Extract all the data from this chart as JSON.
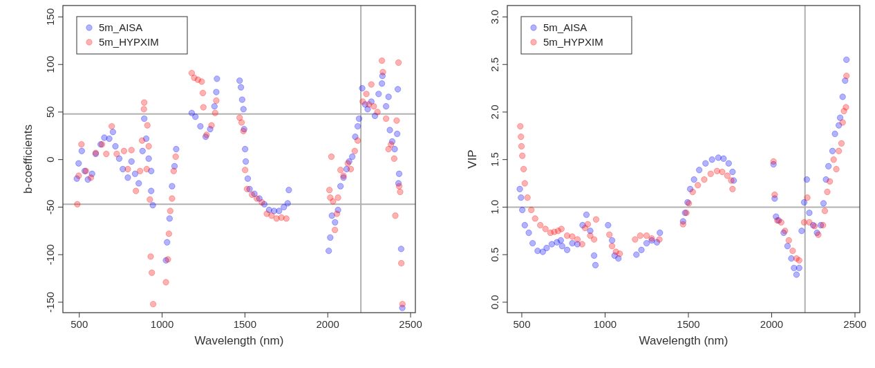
{
  "chart_data": [
    {
      "type": "scatter",
      "xlabel": "Wavelength  (nm)",
      "ylabel": "b-coefficients",
      "xlim": [
        401,
        2529
      ],
      "ylim": [
        -161,
        162
      ],
      "xticks": [
        500,
        1000,
        1500,
        2000,
        2500
      ],
      "yticks": [
        -150,
        -100,
        -50,
        0,
        50,
        100,
        150
      ],
      "marker": "circle",
      "legend": "top left",
      "grid": false,
      "ref_lines": [
        {
          "axis": "y",
          "value": 48,
          "color": "#b0b0b0"
        },
        {
          "axis": "y",
          "value": -47,
          "color": "#b0b0b0"
        },
        {
          "axis": "x",
          "value": 2200,
          "color": "#b0b0b0"
        }
      ],
      "series": [
        {
          "name": "5m_AISA",
          "color": "#0000ff",
          "x": [
            485,
            496,
            515,
            533,
            552,
            577,
            599,
            629,
            651,
            681,
            703,
            718,
            741,
            763,
            793,
            815,
            837,
            859,
            882,
            892,
            904,
            919,
            934,
            934,
            944,
            1030,
            1023,
            1045,
            1060,
            1075,
            1085,
            1179,
            1201,
            1231,
            1263,
            1290,
            1316,
            1327,
            1331,
            1468,
            1476,
            1483,
            1491,
            1495,
            1501,
            1505,
            1517,
            1528,
            1557,
            1587,
            1617,
            1646,
            1676,
            1706,
            1735,
            1758,
            1765,
            2006,
            2015,
            2025,
            2044,
            2062,
            2077,
            2095,
            2114,
            2129,
            2148,
            2166,
            2181,
            2189,
            2208,
            2226,
            2241,
            2263,
            2285,
            2307,
            2327,
            2330,
            2352,
            2367,
            2375,
            2389,
            2404,
            2419,
            2423,
            2431,
            2427,
            2443,
            2450
          ],
          "values": [
            -20,
            -4,
            9,
            -12,
            -21,
            -15,
            6,
            16,
            23,
            22,
            29,
            14,
            1,
            -10,
            -19,
            -2,
            -15,
            -25,
            9,
            43,
            22,
            1,
            -12,
            -33,
            -48,
            -87,
            -106,
            -62,
            -28,
            -7,
            11,
            49,
            45,
            35,
            24,
            32,
            56,
            71,
            85,
            83,
            76,
            63,
            53,
            32,
            11,
            -2,
            -20,
            -31,
            -36,
            -41,
            -47,
            -53,
            -54,
            -54,
            -50,
            -46,
            -32,
            -96,
            -82,
            -59,
            -66,
            -53,
            -28,
            -19,
            -10,
            -2,
            3,
            24,
            35,
            43,
            75,
            58,
            53,
            61,
            46,
            69,
            80,
            88,
            56,
            66,
            31,
            19,
            11,
            27,
            74,
            -15,
            -25,
            -94,
            -156
          ]
        },
        {
          "name": "5m_HYPXIM",
          "color": "#ff0000",
          "x": [
            488,
            496,
            513,
            540,
            570,
            599,
            637,
            663,
            696,
            726,
            770,
            793,
            815,
            842,
            867,
            879,
            890,
            892,
            911,
            919,
            907,
            926,
            931,
            938,
            946,
            1023,
            1035,
            1041,
            1049,
            1060,
            1070,
            1082,
            1179,
            1194,
            1216,
            1239,
            1246,
            1249,
            1268,
            1298,
            1320,
            1327,
            1468,
            1480,
            1491,
            1501,
            1513,
            1543,
            1572,
            1602,
            1632,
            1661,
            1691,
            1720,
            1750,
            2010,
            2015,
            2022,
            2032,
            2043,
            2055,
            2062,
            2077,
            2095,
            2121,
            2139,
            2163,
            2181,
            2211,
            2233,
            2248,
            2263,
            2278,
            2300,
            2327,
            2333,
            2352,
            2367,
            2382,
            2401,
            2408,
            2416,
            2427,
            2431,
            2437,
            2444,
            2451
          ],
          "values": [
            -47,
            -17,
            16,
            -12,
            -19,
            7,
            16,
            6,
            35,
            6,
            9,
            -10,
            10,
            -33,
            -12,
            20,
            53,
            60,
            36,
            14,
            -10,
            -42,
            -102,
            -119,
            -152,
            -129,
            -105,
            -78,
            -54,
            -41,
            -12,
            3,
            91,
            86,
            84,
            82,
            70,
            55,
            26,
            36,
            49,
            62,
            44,
            39,
            30,
            -11,
            -31,
            -37,
            -41,
            -45,
            -57,
            -59,
            -62,
            -61,
            -62,
            -32,
            -40,
            3,
            -44,
            -74,
            -57,
            -40,
            -11,
            -17,
            -4,
            -10,
            9,
            20,
            61,
            69,
            58,
            79,
            56,
            50,
            104,
            92,
            43,
            11,
            16,
            1,
            -59,
            41,
            102,
            -28,
            -34,
            -109,
            -152
          ]
        }
      ]
    },
    {
      "type": "scatter",
      "xlabel": "Wavelength  (nm)",
      "ylabel": "VIP",
      "xlim": [
        413,
        2529
      ],
      "ylim": [
        -0.11,
        3.12
      ],
      "xticks": [
        500,
        1000,
        1500,
        2000,
        2500
      ],
      "yticks": [
        {
          "value": 0,
          "label": "0.0"
        },
        {
          "value": 0.5,
          "label": "0.5"
        },
        {
          "value": 1,
          "label": "1.0"
        },
        {
          "value": 1.5,
          "label": "1.5"
        },
        {
          "value": 2,
          "label": "2.0"
        },
        {
          "value": 2.5,
          "label": "2.5"
        },
        {
          "value": 3,
          "label": "3.0"
        }
      ],
      "marker": "circle",
      "legend": "top left",
      "grid": false,
      "ref_lines": [
        {
          "axis": "y",
          "value": 1,
          "color": "#b0b0b0"
        },
        {
          "axis": "x",
          "value": 2200,
          "color": "#b0b0b0"
        }
      ],
      "series": [
        {
          "name": "5m_AISA",
          "color": "#0000ff",
          "x": [
            488,
            495,
            503,
            518,
            542,
            565,
            595,
            626,
            649,
            680,
            711,
            734,
            742,
            772,
            803,
            834,
            865,
            888,
            911,
            934,
            942,
            1018,
            1042,
            1057,
            1080,
            1188,
            1218,
            1249,
            1280,
            1311,
            1329,
            1468,
            1480,
            1495,
            1511,
            1534,
            1565,
            1603,
            1642,
            1680,
            1711,
            1742,
            1765,
            1772,
            2011,
            2018,
            2026,
            2042,
            2072,
            2095,
            2118,
            2134,
            2149,
            2165,
            2180,
            2195,
            2211,
            2226,
            2249,
            2272,
            2295,
            2311,
            2326,
            2341,
            2365,
            2380,
            2403,
            2411,
            2426,
            2441,
            2449
          ],
          "values": [
            1.19,
            1.1,
            0.97,
            0.81,
            0.73,
            0.62,
            0.54,
            0.53,
            0.57,
            0.61,
            0.63,
            0.65,
            0.59,
            0.55,
            0.62,
            0.61,
            0.81,
            0.92,
            0.75,
            0.49,
            0.39,
            0.81,
            0.65,
            0.49,
            0.46,
            0.5,
            0.55,
            0.62,
            0.65,
            0.63,
            0.73,
            0.85,
            0.94,
            1.05,
            1.19,
            1.29,
            1.39,
            1.46,
            1.5,
            1.52,
            1.51,
            1.46,
            1.37,
            1.28,
            1.45,
            1.09,
            0.9,
            0.86,
            0.73,
            0.59,
            0.46,
            0.36,
            0.29,
            0.36,
            0.75,
            1.05,
            1.29,
            0.94,
            0.81,
            0.73,
            0.81,
            1.04,
            1.29,
            1.43,
            1.59,
            1.77,
            1.86,
            1.94,
            2.16,
            2.33,
            2.55
          ]
        },
        {
          "name": "5m_HYPXIM",
          "color": "#ff0000",
          "x": [
            491,
            495,
            498,
            503,
            511,
            518,
            534,
            557,
            580,
            611,
            642,
            672,
            695,
            718,
            738,
            772,
            803,
            834,
            862,
            880,
            896,
            911,
            934,
            946,
            1026,
            1042,
            1065,
            1088,
            1180,
            1211,
            1249,
            1280,
            1326,
            1468,
            1488,
            1503,
            1526,
            1557,
            1595,
            1634,
            1672,
            1703,
            1734,
            1757,
            1765,
            2011,
            2018,
            2034,
            2057,
            2080,
            2103,
            2126,
            2149,
            2165,
            2195,
            2214,
            2226,
            2257,
            2280,
            2308,
            2319,
            2334,
            2349,
            2372,
            2388,
            2403,
            2419,
            2426,
            2434,
            2446,
            2449
          ],
          "values": [
            1.85,
            1.74,
            1.64,
            1.54,
            1.4,
            1.25,
            1.1,
            0.97,
            0.88,
            0.81,
            0.77,
            0.73,
            0.74,
            0.75,
            0.77,
            0.7,
            0.69,
            0.66,
            0.61,
            0.78,
            0.82,
            0.7,
            0.66,
            0.87,
            0.71,
            0.59,
            0.53,
            0.51,
            0.66,
            0.7,
            0.7,
            0.67,
            0.66,
            0.82,
            0.94,
            1.04,
            1.16,
            1.23,
            1.29,
            1.35,
            1.38,
            1.37,
            1.33,
            1.28,
            1.19,
            1.48,
            1.13,
            0.86,
            0.84,
            0.75,
            0.65,
            0.54,
            0.46,
            0.44,
            0.84,
            1.1,
            0.84,
            0.8,
            0.71,
            0.81,
            0.96,
            1.16,
            1.27,
            1.5,
            1.4,
            1.59,
            1.67,
            1.89,
            2.01,
            2.05,
            2.38
          ]
        }
      ]
    }
  ]
}
